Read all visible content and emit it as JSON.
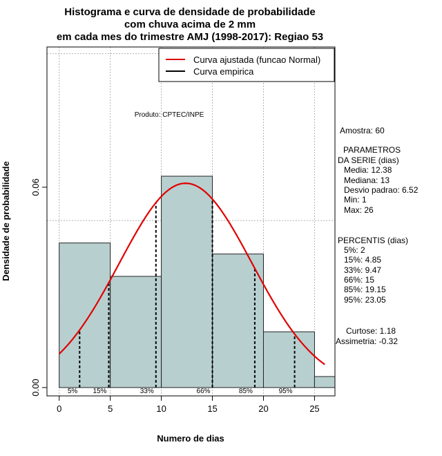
{
  "chart_data": {
    "type": "histogram",
    "title": [
      "Histograma e curva de densidade de probabilidade",
      "com chuva acima de 2 mm",
      "em cada mes do trimestre AMJ (1998-2017): Regiao 53"
    ],
    "xlabel": "Numero de dias",
    "ylabel": "Densidade de probabilidade",
    "xlim": [
      -1.2,
      27
    ],
    "ylim": [
      -0.0025,
      0.102
    ],
    "x_ticks": [
      0,
      5,
      10,
      15,
      20,
      25
    ],
    "y_ticks": [
      0.0,
      0.06
    ],
    "y_tick_labels": [
      "0.00",
      "0.06"
    ],
    "grid": true,
    "grid_x": [
      0,
      5,
      10,
      15,
      20,
      25
    ],
    "grid_y": [
      0.05,
      0.1
    ],
    "bins": [
      {
        "x0": 0,
        "x1": 5,
        "density": 0.0433
      },
      {
        "x0": 5,
        "x1": 10,
        "density": 0.0333
      },
      {
        "x0": 10,
        "x1": 15,
        "density": 0.0633
      },
      {
        "x0": 15,
        "x1": 20,
        "density": 0.04
      },
      {
        "x0": 20,
        "x1": 25,
        "density": 0.0167
      },
      {
        "x0": 25,
        "x1": 27,
        "density": 0.0033
      }
    ],
    "normal_fit": {
      "mean": 12.38,
      "sd": 6.52,
      "x_from": 0,
      "x_to": 26
    },
    "percentile_lines": [
      {
        "label": "5%",
        "x": 2
      },
      {
        "label": "15%",
        "x": 4.85
      },
      {
        "label": "33%",
        "x": 9.47
      },
      {
        "label": "66%",
        "x": 15
      },
      {
        "label": "85%",
        "x": 19.15
      },
      {
        "label": "95%",
        "x": 23.05
      }
    ],
    "legend": {
      "position": "top-right",
      "entries": [
        {
          "label": "Curva ajustada (funcao Normal)",
          "color": "#e00000"
        },
        {
          "label": "Curva empirica",
          "color": "#000000"
        }
      ]
    },
    "annotation": "Produto: CPTEC/INPE",
    "stats": {
      "amostra": "Amostra: 60",
      "param_title_1": "PARAMETROS",
      "param_title_2": "DA SERIE (dias)",
      "params": [
        "Media: 12.38",
        "Mediana: 13",
        "Desvio padrao: 6.52",
        "Min: 1",
        "Max: 26"
      ],
      "perc_title": "PERCENTIS (dias)",
      "percentis": [
        "5%: 2",
        "15%: 4.85",
        "33%: 9.47",
        "66%: 15",
        "85%: 19.15",
        "95%: 23.05"
      ],
      "curtose": "Curtose: 1.18",
      "assimetria": "Assimetria: -0.32"
    },
    "colors": {
      "bar_fill": "#b8cfcf",
      "grid": "#b0b0b0",
      "normal": "#e00000",
      "axis": "#000000"
    }
  }
}
